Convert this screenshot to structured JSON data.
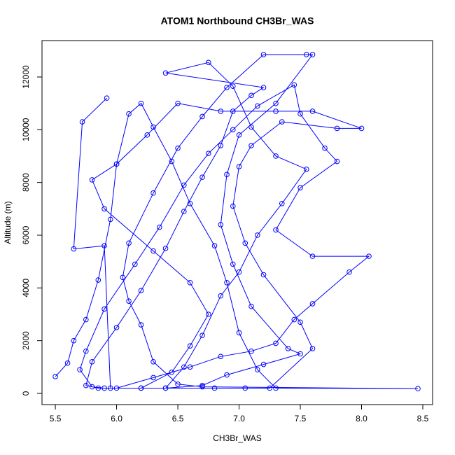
{
  "chart_data": {
    "type": "line",
    "title": "ATOM1 Northbound CH3Br_WAS",
    "x_label": "CH3Br_WAS",
    "y_label": "Altitude (m)",
    "color": "#0000ff",
    "markers": true,
    "xlim": [
      5.391,
      8.58
    ],
    "ylim": [
      -425,
      13380
    ],
    "xticks": [
      5.5,
      {
        "value": 6,
        "label": "6.0"
      },
      6.5,
      {
        "value": 7,
        "label": "7.0"
      },
      7.5,
      {
        "value": 8,
        "label": "8.0"
      },
      8.5
    ],
    "yticks": [
      0,
      2000,
      4000,
      6000,
      8000,
      10000,
      12000
    ],
    "x": [
      5.5,
      5.6,
      5.65,
      5.75,
      5.85,
      5.95,
      6.0,
      6.1,
      6.2,
      6.3,
      6.45,
      6.6,
      6.8,
      6.9,
      7.0,
      7.15,
      7.3,
      8.46,
      6.7,
      6.5,
      6.3,
      6.2,
      6.1,
      6.05,
      6.1,
      6.3,
      6.5,
      6.7,
      6.9,
      7.2,
      7.55,
      7.6,
      7.3,
      7.0,
      6.9,
      6.85,
      6.95,
      7.1,
      7.4,
      7.5,
      7.2,
      6.9,
      6.7,
      6.4,
      6.2,
      5.9,
      5.8,
      5.7,
      5.75,
      5.9,
      6.15,
      6.35,
      6.55,
      6.75,
      6.95,
      7.15,
      7.45,
      7.5,
      7.7,
      7.8,
      7.5,
      7.3,
      7.6,
      8.06,
      7.9,
      7.6,
      7.45,
      7.3,
      7.1,
      6.85,
      6.6,
      6.3,
      6.0,
      5.85,
      5.75,
      5.8,
      6.0,
      6.2,
      6.4,
      6.55,
      6.7,
      6.85,
      6.95,
      7.1,
      7.2,
      6.4,
      6.75,
      6.95,
      7.1,
      7.3,
      7.55,
      7.35,
      7.15,
      7.0,
      6.85,
      6.7,
      6.55,
      6.4,
      6.8,
      7.05,
      7.25,
      7.6,
      7.5,
      7.2,
      7.05,
      6.95,
      7.0,
      7.1,
      7.35,
      7.8,
      8.0,
      7.6,
      7.3,
      6.85,
      6.5,
      6.25,
      6.0,
      5.8,
      5.9,
      6.3,
      6.6,
      6.75,
      6.6,
      6.45,
      6.2,
      5.95,
      5.9,
      5.65,
      5.72,
      5.92
    ],
    "y": [
      640,
      1150,
      2000,
      2800,
      4300,
      6600,
      8700,
      10600,
      11000,
      10100,
      8800,
      7200,
      5600,
      4200,
      2300,
      900,
      200,
      180,
      250,
      350,
      1200,
      2600,
      3500,
      4400,
      5700,
      7600,
      9300,
      10500,
      11600,
      12850,
      12850,
      12850,
      11000,
      9800,
      8300,
      6400,
      4900,
      3300,
      1700,
      1500,
      1100,
      700,
      300,
      200,
      200,
      200,
      250,
      900,
      1600,
      3200,
      4900,
      6300,
      7900,
      9100,
      10000,
      10900,
      11700,
      10600,
      9300,
      8800,
      7800,
      6200,
      5200,
      5200,
      4600,
      3400,
      2800,
      1900,
      1600,
      1400,
      1000,
      600,
      200,
      200,
      300,
      1200,
      2500,
      3900,
      5500,
      6900,
      8200,
      9400,
      10700,
      11300,
      11600,
      12150,
      12550,
      11650,
      10100,
      9000,
      8500,
      7200,
      6000,
      4600,
      3700,
      2200,
      1000,
      200,
      200,
      200,
      200,
      1700,
      2700,
      4500,
      5700,
      7100,
      8600,
      9400,
      10300,
      10050,
      10050,
      10700,
      10700,
      10700,
      11000,
      9800,
      8700,
      8100,
      7000,
      5400,
      4200,
      3000,
      1800,
      800,
      200,
      200,
      5600,
      5480,
      10300,
      11200
    ]
  }
}
